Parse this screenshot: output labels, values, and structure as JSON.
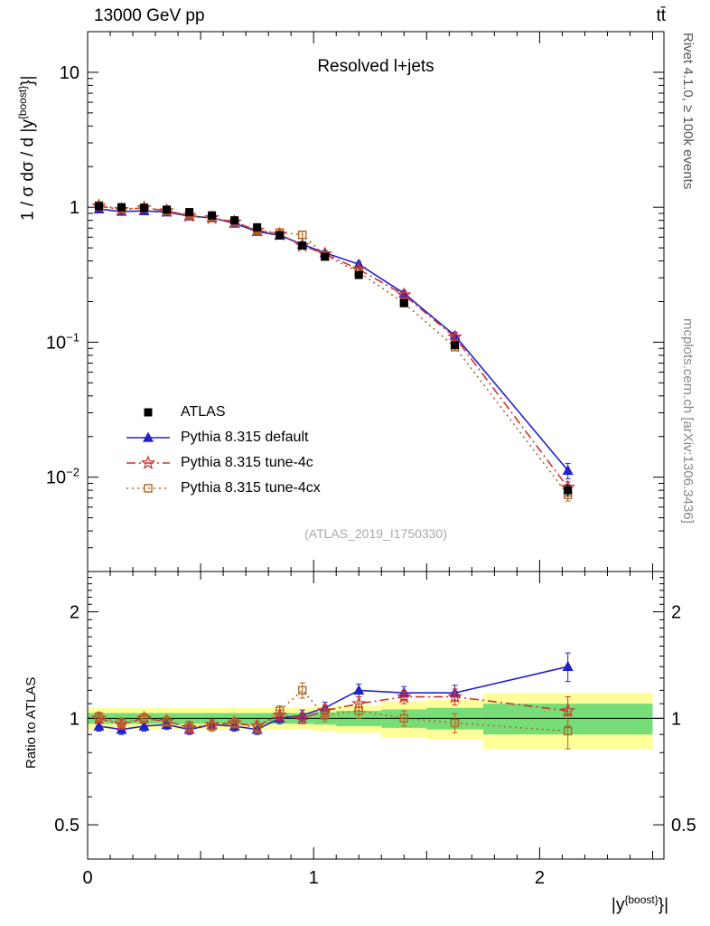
{
  "header": {
    "left": "13000 GeV pp",
    "right": "tt̄"
  },
  "side": {
    "rivet": "Rivet 4.1.0, ≥ 100k events",
    "mcplots": "mcplots.cern.ch [arXiv:1306.3436]"
  },
  "main": {
    "title": "Resolved l+jets",
    "watermark": "(ATLAS_2019_I1750330)"
  },
  "labels": {
    "y": {
      "prefix": "1 / σ dσ / d |y",
      "sup": "{boost}",
      "suffix": "}|"
    },
    "x": {
      "prefix": "|y",
      "sup": "{boost}",
      "suffix": "}|"
    },
    "ratio": "Ratio to ATLAS"
  },
  "legend": [
    {
      "label": "ATLAS",
      "marker": "square-filled",
      "line": "none",
      "color": "#000000"
    },
    {
      "label": "Pythia 8.315 default",
      "marker": "triangle-filled",
      "line": "solid",
      "color": "#2222cc"
    },
    {
      "label": "Pythia 8.315 tune-4c",
      "marker": "star-open",
      "line": "dashdot",
      "color": "#cc3333"
    },
    {
      "label": "Pythia 8.315 tune-4cx",
      "marker": "square-open",
      "line": "dotted",
      "color": "#b5651d"
    }
  ],
  "colors": {
    "band_yellow": "#ffff99",
    "band_green": "#77dd77",
    "frame": "#000000",
    "watermark": "#a9a9a9"
  },
  "chart_data": {
    "type": "line",
    "title": "Resolved l+jets",
    "xlabel": "|y^{boost}|",
    "ylabel": "1/σ dσ/d|y^{boost}|",
    "grid": false,
    "legend_position": "left-middle",
    "bin_edges": [
      0,
      0.1,
      0.2,
      0.3,
      0.4,
      0.5,
      0.6,
      0.7,
      0.8,
      0.9,
      1.0,
      1.1,
      1.3,
      1.5,
      1.75,
      2.5
    ],
    "x": [
      0.05,
      0.15,
      0.25,
      0.35,
      0.45,
      0.55,
      0.65,
      0.75,
      0.85,
      0.95,
      1.05,
      1.2,
      1.4,
      1.625,
      2.125
    ],
    "series": [
      {
        "name": "ATLAS",
        "values": [
          1.02,
          1.0,
          0.99,
          0.96,
          0.92,
          0.87,
          0.8,
          0.71,
          0.62,
          0.52,
          0.43,
          0.315,
          0.195,
          0.095,
          0.008
        ],
        "err_rel": [
          0.03,
          0.03,
          0.03,
          0.03,
          0.03,
          0.03,
          0.03,
          0.03,
          0.035,
          0.035,
          0.035,
          0.04,
          0.04,
          0.05,
          0.09
        ]
      },
      {
        "name": "Pythia 8.315 default",
        "values": [
          0.97,
          0.93,
          0.94,
          0.92,
          0.86,
          0.835,
          0.76,
          0.66,
          0.62,
          0.53,
          0.46,
          0.378,
          0.23,
          0.112,
          0.0112
        ],
        "err_rel": [
          0.03,
          0.03,
          0.03,
          0.03,
          0.03,
          0.03,
          0.03,
          0.03,
          0.035,
          0.035,
          0.04,
          0.05,
          0.05,
          0.06,
          0.13
        ]
      },
      {
        "name": "Pythia 8.315 tune-4c",
        "values": [
          1.02,
          0.96,
          0.99,
          0.94,
          0.865,
          0.835,
          0.776,
          0.675,
          0.63,
          0.52,
          0.45,
          0.347,
          0.224,
          0.109,
          0.0084
        ],
        "err_rel": [
          0.03,
          0.03,
          0.03,
          0.03,
          0.03,
          0.03,
          0.03,
          0.03,
          0.035,
          0.035,
          0.04,
          0.05,
          0.05,
          0.06,
          0.1
        ]
      },
      {
        "name": "Pythia 8.315 tune-4cx",
        "values": [
          1.03,
          0.97,
          0.99,
          0.94,
          0.874,
          0.83,
          0.776,
          0.667,
          0.65,
          0.625,
          0.44,
          0.33,
          0.195,
          0.092,
          0.0074
        ],
        "err_rel": [
          0.03,
          0.03,
          0.03,
          0.03,
          0.03,
          0.03,
          0.03,
          0.03,
          0.035,
          0.06,
          0.04,
          0.05,
          0.05,
          0.06,
          0.1
        ]
      }
    ],
    "ratio": {
      "ylabel": "Ratio to ATLAS",
      "ylim": [
        0.4,
        2.6
      ],
      "yticks": [
        {
          "v": 0.5,
          "label": "0.5"
        },
        {
          "v": 1,
          "label": "1"
        },
        {
          "v": 2,
          "label": "2"
        }
      ],
      "series": [
        {
          "name": "Pythia 8.315 default",
          "values": [
            0.95,
            0.93,
            0.95,
            0.96,
            0.93,
            0.96,
            0.95,
            0.93,
            1.0,
            1.02,
            1.07,
            1.2,
            1.18,
            1.18,
            1.4
          ],
          "err": [
            0.03,
            0.03,
            0.03,
            0.03,
            0.03,
            0.03,
            0.03,
            0.03,
            0.035,
            0.035,
            0.04,
            0.05,
            0.05,
            0.06,
            0.13
          ]
        },
        {
          "name": "Pythia 8.315 tune-4c",
          "values": [
            1.0,
            0.96,
            1.0,
            0.98,
            0.94,
            0.96,
            0.97,
            0.95,
            1.02,
            1.0,
            1.05,
            1.1,
            1.15,
            1.15,
            1.05
          ],
          "err": [
            0.03,
            0.03,
            0.03,
            0.03,
            0.03,
            0.03,
            0.03,
            0.03,
            0.035,
            0.035,
            0.04,
            0.05,
            0.05,
            0.06,
            0.1
          ]
        },
        {
          "name": "Pythia 8.315 tune-4cx",
          "values": [
            1.01,
            0.97,
            1.0,
            0.98,
            0.95,
            0.95,
            0.97,
            0.94,
            1.05,
            1.2,
            1.02,
            1.05,
            1.0,
            0.97,
            0.92
          ],
          "err": [
            0.03,
            0.03,
            0.03,
            0.03,
            0.03,
            0.03,
            0.03,
            0.03,
            0.035,
            0.06,
            0.04,
            0.05,
            0.05,
            0.06,
            0.1
          ]
        }
      ],
      "bands": {
        "yellow": [
          0.07,
          0.07,
          0.07,
          0.07,
          0.07,
          0.07,
          0.07,
          0.07,
          0.07,
          0.07,
          0.08,
          0.09,
          0.12,
          0.13,
          0.18
        ],
        "green": [
          0.035,
          0.035,
          0.035,
          0.035,
          0.035,
          0.035,
          0.035,
          0.035,
          0.035,
          0.035,
          0.04,
          0.05,
          0.06,
          0.07,
          0.1
        ]
      }
    },
    "axes": {
      "x": {
        "min": 0,
        "max": 2.55,
        "major": [
          {
            "v": 0,
            "label": "0"
          },
          {
            "v": 1,
            "label": "1"
          },
          {
            "v": 2,
            "label": "2"
          }
        ]
      },
      "y": {
        "scale": "log",
        "min": 0.002,
        "max": 20,
        "decade_exponents": [
          1,
          0,
          -1,
          -2
        ]
      }
    }
  }
}
